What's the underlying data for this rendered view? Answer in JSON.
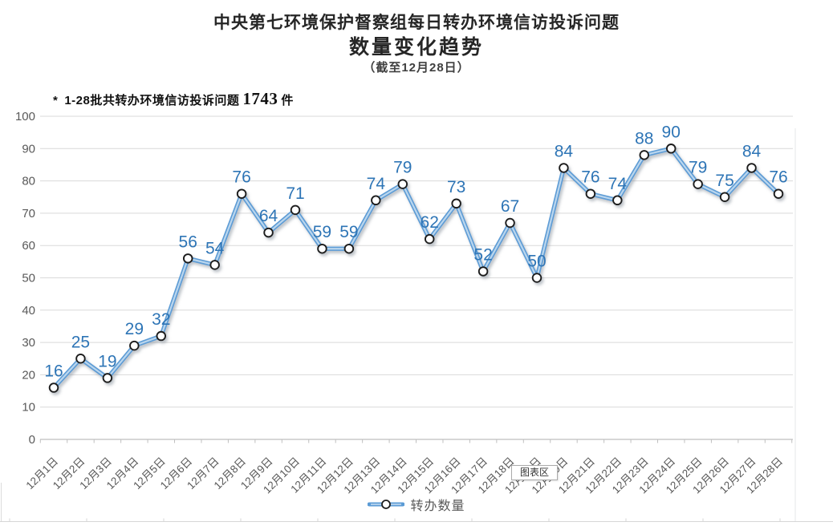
{
  "header": {
    "line1": "中央第七环境保护督察组每日转办环境信访投诉问题",
    "line2": "数量变化趋势",
    "line3": "（截至12月28日）"
  },
  "note": {
    "star": "*",
    "text": "1-28批共转办环境信访投诉问题",
    "value": "1743",
    "unit": "件"
  },
  "tooltip": {
    "label": "图表区"
  },
  "legend": {
    "label": "转办数量"
  },
  "colors": {
    "line": "#5b9bd5",
    "line_inner": "#bad6ee",
    "marker_fill": "#ffffff",
    "marker_stroke": "#1f1f1f",
    "data_label": "#2e75b6",
    "axis_text": "#595959",
    "gridline": "#d9d9d9",
    "axis_line": "#bfbfbf",
    "note_value": "#b20000",
    "title_text": "#262626"
  },
  "chart_data": {
    "type": "line",
    "title": "中央第七环境保护督察组每日转办环境信访投诉问题 数量变化趋势（截至12月28日）",
    "categories": [
      "12月1日",
      "12月2日",
      "12月3日",
      "12月4日",
      "12月5日",
      "12月6日",
      "12月7日",
      "12月8日",
      "12月9日",
      "12月10日",
      "12月11日",
      "12月12日",
      "12月13日",
      "12月14日",
      "12月15日",
      "12月16日",
      "12月17日",
      "12月18日",
      "12月19日",
      "12月20日",
      "12月21日",
      "12月22日",
      "12月23日",
      "12月24日",
      "12月25日",
      "12月26日",
      "12月27日",
      "12月28日"
    ],
    "series": [
      {
        "name": "转办数量",
        "values": [
          16,
          25,
          19,
          29,
          32,
          56,
          54,
          76,
          64,
          71,
          59,
          59,
          74,
          79,
          62,
          73,
          52,
          67,
          50,
          84,
          76,
          74,
          88,
          90,
          79,
          75,
          84,
          76
        ]
      }
    ],
    "xlabel": "",
    "ylabel": "",
    "ylim": [
      0,
      100
    ],
    "ytick_step": 10,
    "grid": true,
    "legend_position": "bottom",
    "data_labels": true,
    "marker": "circle-white-black-outline"
  }
}
